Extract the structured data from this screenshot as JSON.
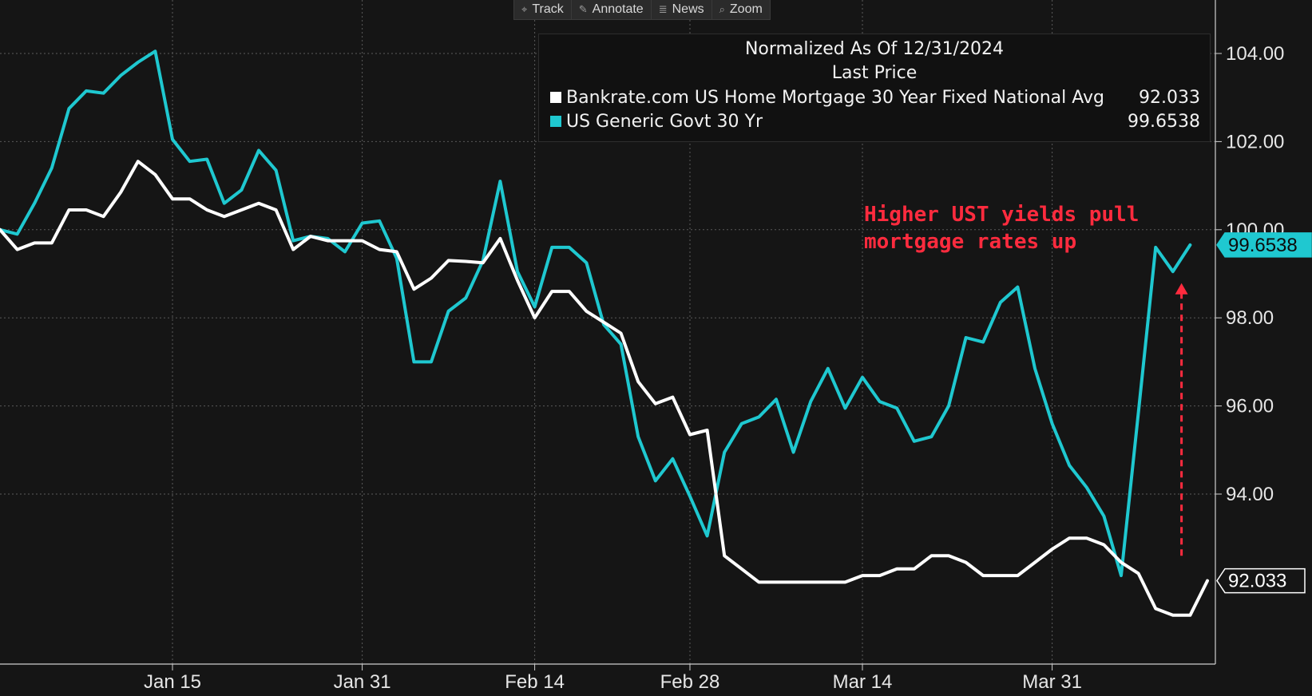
{
  "toolbar": {
    "items": [
      {
        "label": "Track",
        "icon": "crosshair-icon"
      },
      {
        "label": "Annotate",
        "icon": "pencil-icon"
      },
      {
        "label": "News",
        "icon": "news-icon"
      },
      {
        "label": "Zoom",
        "icon": "magnifier-icon"
      }
    ]
  },
  "legend": {
    "header1": "Normalized As Of 12/31/2024",
    "header2": "Last Price",
    "entries": [
      {
        "name": "Bankrate.com US Home Mortgage 30 Year Fixed National Avg",
        "value": "92.033",
        "color": "#ffffff"
      },
      {
        "name": "US Generic Govt 30 Yr",
        "value": "99.6538",
        "color": "#1fc8d0"
      }
    ]
  },
  "annotation": {
    "line1": "Higher UST yields pull",
    "line2": "mortgage rates up",
    "color": "#ff2b3e"
  },
  "chart_data": {
    "type": "line",
    "title": "Normalized As Of 12/31/2024",
    "x_tick_labels": [
      "Jan 15",
      "Jan 31",
      "Feb 14",
      "Feb 28",
      "Mar 14",
      "Mar 31"
    ],
    "x_tick_positions": [
      10,
      21,
      31,
      40,
      50,
      61
    ],
    "y_tick_labels": [
      "94.00",
      "96.00",
      "98.00",
      "100.00",
      "102.00",
      "104.00"
    ],
    "ylim": [
      90.0,
      105.0
    ],
    "xlim": [
      0,
      70
    ],
    "grid": true,
    "legend_position": "top-right",
    "series": [
      {
        "name": "Bankrate.com US Home Mortgage 30 Year Fixed National Avg",
        "color": "#ffffff",
        "last_value": "92.033",
        "values": [
          100.0,
          99.55,
          99.7,
          99.7,
          100.45,
          100.45,
          100.3,
          100.85,
          101.55,
          101.25,
          100.7,
          100.7,
          100.45,
          100.3,
          100.45,
          100.6,
          100.45,
          99.55,
          99.85,
          99.75,
          99.75,
          99.75,
          99.55,
          99.5,
          98.65,
          98.9,
          99.3,
          99.28,
          99.25,
          99.8,
          98.85,
          98.0,
          98.6,
          98.6,
          98.15,
          97.9,
          97.65,
          96.55,
          96.05,
          96.2,
          95.35,
          95.45,
          92.6,
          92.3,
          92.0,
          92.0,
          92.0,
          92.0,
          92.0,
          92.0,
          92.15,
          92.15,
          92.3,
          92.3,
          92.6,
          92.6,
          92.45,
          92.15,
          92.15,
          92.15,
          92.45,
          92.75,
          93.0,
          93.0,
          92.85,
          92.45,
          92.2,
          91.4,
          91.25,
          91.25,
          92.033
        ]
      },
      {
        "name": "US Generic Govt 30 Yr",
        "color": "#1fc8d0",
        "last_value": "99.6538",
        "values": [
          100.0,
          99.9,
          100.6,
          101.4,
          102.75,
          103.15,
          103.1,
          103.5,
          103.8,
          104.05,
          102.05,
          101.55,
          101.6,
          100.6,
          100.9,
          101.8,
          101.35,
          99.75,
          99.85,
          99.8,
          99.5,
          100.15,
          100.2,
          99.35,
          97.0,
          97.0,
          98.15,
          98.45,
          99.3,
          101.1,
          99.05,
          98.25,
          99.6,
          99.6,
          99.25,
          97.85,
          97.4,
          95.3,
          94.3,
          94.8,
          93.95,
          93.05,
          94.95,
          95.6,
          95.75,
          96.15,
          94.95,
          96.1,
          96.85,
          95.95,
          96.65,
          96.1,
          95.95,
          95.2,
          95.3,
          96.0,
          97.55,
          97.45,
          98.35,
          98.7,
          96.85,
          95.6,
          94.65,
          94.15,
          93.5,
          92.15,
          95.85,
          99.6,
          99.05,
          99.6538
        ]
      }
    ]
  }
}
